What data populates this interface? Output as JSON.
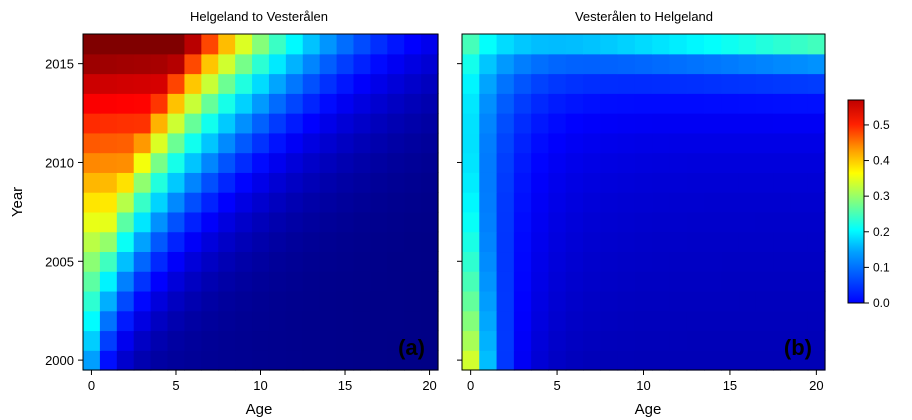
{
  "chart_data": {
    "type": "heatmap",
    "ylabel": "Year",
    "colorbar": {
      "range": [
        0,
        0.57
      ],
      "ticks": [
        0.0,
        0.1,
        0.2,
        0.3,
        0.4,
        0.5
      ],
      "tick_labels": [
        "0.0",
        "0.1",
        "0.2",
        "0.3",
        "0.4",
        "0.5"
      ],
      "colormap": "jet"
    },
    "panels": [
      {
        "title": "Helgeland to Vesterålen",
        "letter": "(a)",
        "xlabel": "Age",
        "x_range": [
          0,
          20
        ],
        "y_range": [
          2000,
          2016
        ],
        "x_ticks": [
          0,
          5,
          10,
          15,
          20
        ],
        "y_ticks": [
          2000,
          2005,
          2010,
          2015
        ],
        "ages": [
          0,
          1,
          2,
          3,
          4,
          5,
          6,
          7,
          8,
          9,
          10,
          11,
          12,
          13,
          14,
          15,
          16,
          17,
          18,
          19,
          20
        ],
        "years": [
          2000,
          2001,
          2002,
          2003,
          2004,
          2005,
          2006,
          2007,
          2008,
          2009,
          2010,
          2011,
          2012,
          2013,
          2014,
          2015,
          2016
        ],
        "pattern": "cohort_decay",
        "peak_value": 0.56,
        "note_values": "value in each year-age cell, generated from diagonal cohort decay model"
      },
      {
        "title": "Vesterålen to Helgeland",
        "letter": "(b)",
        "xlabel": "Age",
        "x_range": [
          0,
          20
        ],
        "y_range": [
          2000,
          2016
        ],
        "x_ticks": [
          0,
          5,
          10,
          15,
          20
        ],
        "y_ticks": [
          2000,
          2005,
          2010,
          2015
        ],
        "ages": [
          0,
          1,
          2,
          3,
          4,
          5,
          6,
          7,
          8,
          9,
          10,
          11,
          12,
          13,
          14,
          15,
          16,
          17,
          18,
          19,
          20
        ],
        "years": [
          2000,
          2001,
          2002,
          2003,
          2004,
          2005,
          2006,
          2007,
          2008,
          2009,
          2010,
          2011,
          2012,
          2013,
          2014,
          2015,
          2016
        ],
        "pattern": "edge_low",
        "peak_value": 0.33
      }
    ]
  }
}
